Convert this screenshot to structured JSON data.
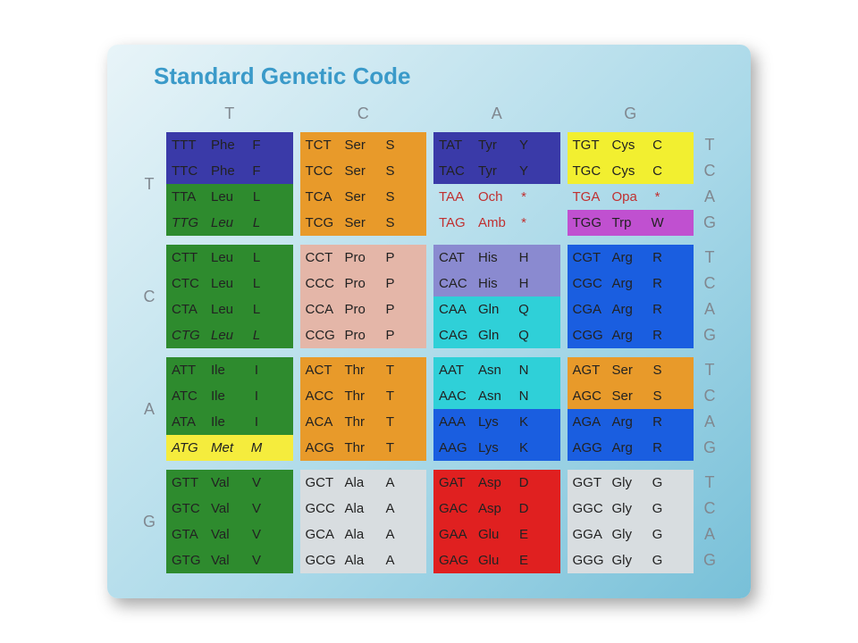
{
  "title": "Standard Genetic Code",
  "title_color": "#3a9ac9",
  "title_fontsize": 26,
  "header_fontsize": 18,
  "cell_fontsize": 15,
  "default_text_color": "#222222",
  "col_headers": [
    "T",
    "C",
    "A",
    "G"
  ],
  "row_headers": [
    "T",
    "C",
    "A",
    "G"
  ],
  "third_pos": [
    "T",
    "C",
    "A",
    "G"
  ],
  "colors": {
    "Phe": "#3a3aa8",
    "Leu": "#2e8b2e",
    "Ile": "#2e8b2e",
    "Met": "#f5ec3d",
    "Val": "#2e8b2e",
    "Ser_TC": "#e89a2a",
    "Ser_AG": "#e89a2a",
    "Pro": "#e4b6a8",
    "Thr": "#e89a2a",
    "Ala": "#d8dde0",
    "Tyr": "#3a3aa8",
    "His": "#8a8ad0",
    "Gln": "#2fd0d8",
    "Asn": "#2fd0d8",
    "Lys": "#1a5ee0",
    "Asp": "#e02020",
    "Glu": "#e02020",
    "Cys": "#f2ef30",
    "Trp": "#c050d0",
    "Arg": "#1a5ee0",
    "Gly": "#d8dde0",
    "Stop": "transparent"
  },
  "stop_text_color": "#c03030",
  "cells": [
    [
      [
        {
          "codon": "TTT",
          "name": "Phe",
          "letter": "F",
          "bg": "Phe"
        },
        {
          "codon": "TTC",
          "name": "Phe",
          "letter": "F",
          "bg": "Phe"
        },
        {
          "codon": "TTA",
          "name": "Leu",
          "letter": "L",
          "bg": "Leu"
        },
        {
          "codon": "TTG",
          "name": "Leu",
          "letter": "L",
          "bg": "Leu",
          "italic": true
        }
      ],
      [
        {
          "codon": "TCT",
          "name": "Ser",
          "letter": "S",
          "bg": "Ser_TC"
        },
        {
          "codon": "TCC",
          "name": "Ser",
          "letter": "S",
          "bg": "Ser_TC"
        },
        {
          "codon": "TCA",
          "name": "Ser",
          "letter": "S",
          "bg": "Ser_TC"
        },
        {
          "codon": "TCG",
          "name": "Ser",
          "letter": "S",
          "bg": "Ser_TC"
        }
      ],
      [
        {
          "codon": "TAT",
          "name": "Tyr",
          "letter": "Y",
          "bg": "Tyr"
        },
        {
          "codon": "TAC",
          "name": "Tyr",
          "letter": "Y",
          "bg": "Tyr"
        },
        {
          "codon": "TAA",
          "name": "Och",
          "letter": "*",
          "bg": "Stop",
          "stop": true
        },
        {
          "codon": "TAG",
          "name": "Amb",
          "letter": "*",
          "bg": "Stop",
          "stop": true
        }
      ],
      [
        {
          "codon": "TGT",
          "name": "Cys",
          "letter": "C",
          "bg": "Cys"
        },
        {
          "codon": "TGC",
          "name": "Cys",
          "letter": "C",
          "bg": "Cys"
        },
        {
          "codon": "TGA",
          "name": "Opa",
          "letter": "*",
          "bg": "Stop",
          "stop": true
        },
        {
          "codon": "TGG",
          "name": "Trp",
          "letter": "W",
          "bg": "Trp"
        }
      ]
    ],
    [
      [
        {
          "codon": "CTT",
          "name": "Leu",
          "letter": "L",
          "bg": "Leu"
        },
        {
          "codon": "CTC",
          "name": "Leu",
          "letter": "L",
          "bg": "Leu"
        },
        {
          "codon": "CTA",
          "name": "Leu",
          "letter": "L",
          "bg": "Leu"
        },
        {
          "codon": "CTG",
          "name": "Leu",
          "letter": "L",
          "bg": "Leu",
          "italic": true
        }
      ],
      [
        {
          "codon": "CCT",
          "name": "Pro",
          "letter": "P",
          "bg": "Pro"
        },
        {
          "codon": "CCC",
          "name": "Pro",
          "letter": "P",
          "bg": "Pro"
        },
        {
          "codon": "CCA",
          "name": "Pro",
          "letter": "P",
          "bg": "Pro"
        },
        {
          "codon": "CCG",
          "name": "Pro",
          "letter": "P",
          "bg": "Pro"
        }
      ],
      [
        {
          "codon": "CAT",
          "name": "His",
          "letter": "H",
          "bg": "His"
        },
        {
          "codon": "CAC",
          "name": "His",
          "letter": "H",
          "bg": "His"
        },
        {
          "codon": "CAA",
          "name": "Gln",
          "letter": "Q",
          "bg": "Gln"
        },
        {
          "codon": "CAG",
          "name": "Gln",
          "letter": "Q",
          "bg": "Gln"
        }
      ],
      [
        {
          "codon": "CGT",
          "name": "Arg",
          "letter": "R",
          "bg": "Arg"
        },
        {
          "codon": "CGC",
          "name": "Arg",
          "letter": "R",
          "bg": "Arg"
        },
        {
          "codon": "CGA",
          "name": "Arg",
          "letter": "R",
          "bg": "Arg"
        },
        {
          "codon": "CGG",
          "name": "Arg",
          "letter": "R",
          "bg": "Arg"
        }
      ]
    ],
    [
      [
        {
          "codon": "ATT",
          "name": "Ile",
          "letter": "I",
          "bg": "Ile"
        },
        {
          "codon": "ATC",
          "name": "Ile",
          "letter": "I",
          "bg": "Ile"
        },
        {
          "codon": "ATA",
          "name": "Ile",
          "letter": "I",
          "bg": "Ile"
        },
        {
          "codon": "ATG",
          "name": "Met",
          "letter": "M",
          "bg": "Met",
          "italic": true
        }
      ],
      [
        {
          "codon": "ACT",
          "name": "Thr",
          "letter": "T",
          "bg": "Thr"
        },
        {
          "codon": "ACC",
          "name": "Thr",
          "letter": "T",
          "bg": "Thr"
        },
        {
          "codon": "ACA",
          "name": "Thr",
          "letter": "T",
          "bg": "Thr"
        },
        {
          "codon": "ACG",
          "name": "Thr",
          "letter": "T",
          "bg": "Thr"
        }
      ],
      [
        {
          "codon": "AAT",
          "name": "Asn",
          "letter": "N",
          "bg": "Asn"
        },
        {
          "codon": "AAC",
          "name": "Asn",
          "letter": "N",
          "bg": "Asn"
        },
        {
          "codon": "AAA",
          "name": "Lys",
          "letter": "K",
          "bg": "Lys"
        },
        {
          "codon": "AAG",
          "name": "Lys",
          "letter": "K",
          "bg": "Lys"
        }
      ],
      [
        {
          "codon": "AGT",
          "name": "Ser",
          "letter": "S",
          "bg": "Ser_AG"
        },
        {
          "codon": "AGC",
          "name": "Ser",
          "letter": "S",
          "bg": "Ser_AG"
        },
        {
          "codon": "AGA",
          "name": "Arg",
          "letter": "R",
          "bg": "Arg"
        },
        {
          "codon": "AGG",
          "name": "Arg",
          "letter": "R",
          "bg": "Arg"
        }
      ]
    ],
    [
      [
        {
          "codon": "GTT",
          "name": "Val",
          "letter": "V",
          "bg": "Val"
        },
        {
          "codon": "GTC",
          "name": "Val",
          "letter": "V",
          "bg": "Val"
        },
        {
          "codon": "GTA",
          "name": "Val",
          "letter": "V",
          "bg": "Val"
        },
        {
          "codon": "GTG",
          "name": "Val",
          "letter": "V",
          "bg": "Val"
        }
      ],
      [
        {
          "codon": "GCT",
          "name": "Ala",
          "letter": "A",
          "bg": "Ala"
        },
        {
          "codon": "GCC",
          "name": "Ala",
          "letter": "A",
          "bg": "Ala"
        },
        {
          "codon": "GCA",
          "name": "Ala",
          "letter": "A",
          "bg": "Ala"
        },
        {
          "codon": "GCG",
          "name": "Ala",
          "letter": "A",
          "bg": "Ala"
        }
      ],
      [
        {
          "codon": "GAT",
          "name": "Asp",
          "letter": "D",
          "bg": "Asp"
        },
        {
          "codon": "GAC",
          "name": "Asp",
          "letter": "D",
          "bg": "Asp"
        },
        {
          "codon": "GAA",
          "name": "Glu",
          "letter": "E",
          "bg": "Glu"
        },
        {
          "codon": "GAG",
          "name": "Glu",
          "letter": "E",
          "bg": "Glu"
        }
      ],
      [
        {
          "codon": "GGT",
          "name": "Gly",
          "letter": "G",
          "bg": "Gly"
        },
        {
          "codon": "GGC",
          "name": "Gly",
          "letter": "G",
          "bg": "Gly"
        },
        {
          "codon": "GGA",
          "name": "Gly",
          "letter": "G",
          "bg": "Gly"
        },
        {
          "codon": "GGG",
          "name": "Gly",
          "letter": "G",
          "bg": "Gly"
        }
      ]
    ]
  ]
}
